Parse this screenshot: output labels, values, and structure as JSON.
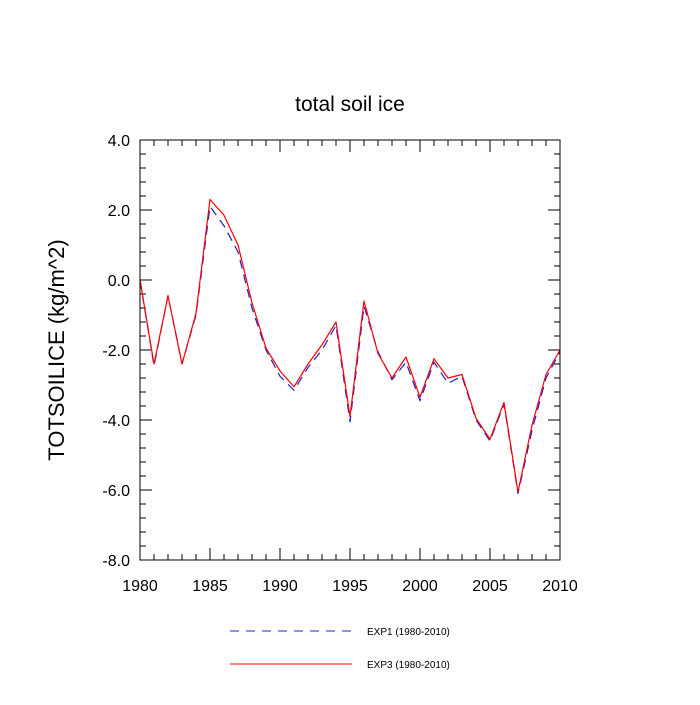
{
  "chart_data": {
    "type": "line",
    "title": "total soil ice",
    "xlabel": "",
    "ylabel": "TOTSOILICE  (kg/m^2)",
    "xlim": [
      1980,
      2010
    ],
    "ylim": [
      -8.0,
      4.0
    ],
    "xticks": [
      1980,
      1985,
      1990,
      1995,
      2000,
      2005,
      2010
    ],
    "xtick_labels": [
      "1980",
      "1985",
      "1990",
      "1995",
      "2000",
      "2005",
      "2010"
    ],
    "yticks": [
      -8.0,
      -6.0,
      -4.0,
      -2.0,
      0.0,
      2.0,
      4.0
    ],
    "ytick_labels": [
      "-8.0",
      "-6.0",
      "-4.0",
      "-2.0",
      "0.0",
      "2.0",
      "4.0"
    ],
    "grid": false,
    "legend_position": "bottom-center",
    "x": [
      1980,
      1981,
      1982,
      1983,
      1984,
      1985,
      1986,
      1987,
      1988,
      1989,
      1990,
      1991,
      1992,
      1993,
      1994,
      1995,
      1996,
      1997,
      1998,
      1999,
      2000,
      2001,
      2002,
      2003,
      2004,
      2005,
      2006,
      2007,
      2008,
      2009,
      2010
    ],
    "series": [
      {
        "name": "EXP1 (1980-2010)",
        "color": "#1f1fcc",
        "dash": "dashed",
        "values": [
          0.0,
          -2.45,
          -0.45,
          -2.4,
          -1.0,
          2.1,
          1.55,
          0.8,
          -0.8,
          -2.0,
          -2.75,
          -3.15,
          -2.5,
          -2.0,
          -1.3,
          -4.05,
          -0.75,
          -2.05,
          -2.85,
          -2.35,
          -3.45,
          -2.35,
          -2.95,
          -2.75,
          -4.0,
          -4.6,
          -3.55,
          -6.1,
          -4.3,
          -2.8,
          -2.05
        ]
      },
      {
        "name": "EXP3 (1980-2010)",
        "color": "#ff0000",
        "dash": "solid",
        "values": [
          0.0,
          -2.4,
          -0.45,
          -2.4,
          -0.95,
          2.3,
          1.85,
          1.0,
          -0.65,
          -1.95,
          -2.6,
          -3.05,
          -2.4,
          -1.85,
          -1.2,
          -3.9,
          -0.6,
          -2.1,
          -2.8,
          -2.2,
          -3.35,
          -2.25,
          -2.8,
          -2.7,
          -3.95,
          -4.55,
          -3.5,
          -6.05,
          -4.15,
          -2.7,
          -2.0
        ]
      }
    ]
  }
}
